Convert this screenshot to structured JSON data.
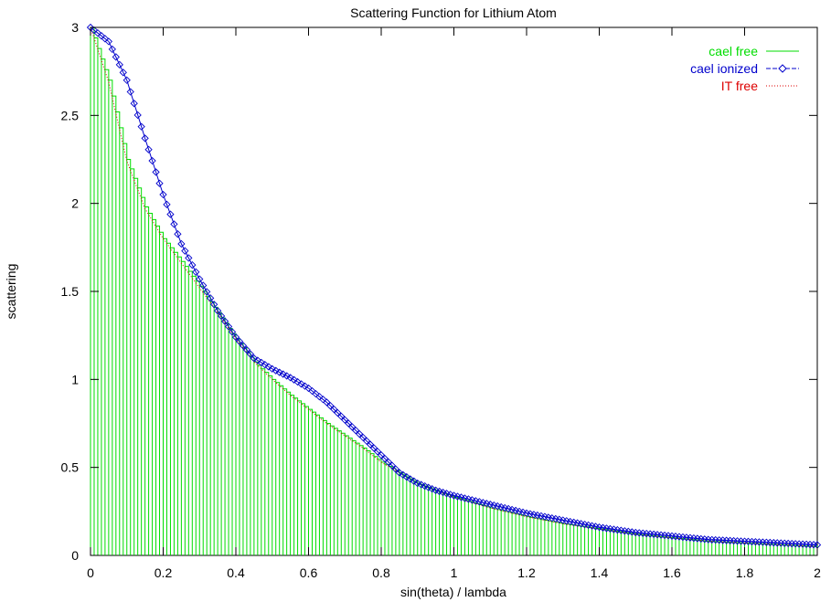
{
  "chart_data": {
    "type": "line",
    "title": "Scattering Function for Lithium Atom",
    "xlabel": "sin(theta) / lambda",
    "ylabel": "scattering",
    "xlim": [
      0,
      2
    ],
    "ylim": [
      0,
      3
    ],
    "x_ticks": [
      "0",
      "0.2",
      "0.4",
      "0.6",
      "0.8",
      "1",
      "1.2",
      "1.4",
      "1.6",
      "1.8",
      "2"
    ],
    "y_ticks": [
      "0",
      "0.5",
      "1",
      "1.5",
      "2",
      "2.5",
      "3"
    ],
    "grid": false,
    "legend_position": "top-right",
    "series": [
      {
        "name": "cael free",
        "color": "#00dd00",
        "style": "steps/impulses",
        "x": [
          0,
          0.05,
          0.1,
          0.15,
          0.2,
          0.25,
          0.3,
          0.35,
          0.4,
          0.45,
          0.5,
          0.55,
          0.6,
          0.65,
          0.7,
          0.75,
          0.8,
          0.85,
          0.9,
          0.95,
          1.0,
          1.1,
          1.2,
          1.3,
          1.4,
          1.5,
          1.6,
          1.7,
          1.8,
          1.9,
          2.0
        ],
        "values": [
          3.0,
          2.7,
          2.25,
          1.98,
          1.8,
          1.67,
          1.53,
          1.38,
          1.23,
          1.1,
          1.0,
          0.91,
          0.83,
          0.75,
          0.68,
          0.61,
          0.53,
          0.47,
          0.41,
          0.37,
          0.33,
          0.27,
          0.22,
          0.18,
          0.15,
          0.12,
          0.1,
          0.08,
          0.07,
          0.06,
          0.05
        ]
      },
      {
        "name": "cael ionized",
        "color": "#0000cc",
        "style": "linespoints",
        "x": [
          0,
          0.05,
          0.1,
          0.15,
          0.2,
          0.25,
          0.3,
          0.35,
          0.4,
          0.45,
          0.5,
          0.55,
          0.6,
          0.65,
          0.7,
          0.75,
          0.8,
          0.85,
          0.9,
          0.95,
          1.0,
          1.1,
          1.2,
          1.3,
          1.4,
          1.5,
          1.6,
          1.7,
          1.8,
          1.9,
          2.0
        ],
        "values": [
          3.0,
          2.92,
          2.7,
          2.37,
          2.05,
          1.77,
          1.57,
          1.39,
          1.24,
          1.12,
          1.06,
          1.01,
          0.95,
          0.87,
          0.77,
          0.67,
          0.57,
          0.47,
          0.41,
          0.37,
          0.34,
          0.29,
          0.24,
          0.2,
          0.16,
          0.13,
          0.11,
          0.09,
          0.08,
          0.07,
          0.06
        ]
      },
      {
        "name": "IT free",
        "color": "#dd0000",
        "style": "dots",
        "x": [
          0,
          0.05,
          0.1,
          0.15,
          0.2,
          0.25,
          0.3,
          0.35,
          0.4,
          0.45,
          0.5,
          0.55,
          0.6,
          0.65,
          0.7,
          0.75,
          0.8,
          0.85,
          0.9,
          0.95,
          1.0,
          1.1,
          1.2,
          1.3,
          1.4,
          1.5,
          1.6,
          1.7,
          1.8,
          1.9,
          2.0
        ],
        "values": [
          3.0,
          2.69,
          2.24,
          1.97,
          1.8,
          1.66,
          1.52,
          1.38,
          1.23,
          1.1,
          1.0,
          0.91,
          0.83,
          0.75,
          0.68,
          0.61,
          0.53,
          0.47,
          0.41,
          0.37,
          0.33,
          0.27,
          0.22,
          0.18,
          0.15,
          0.12,
          0.1,
          0.08,
          0.07,
          0.06,
          0.05
        ]
      }
    ]
  }
}
